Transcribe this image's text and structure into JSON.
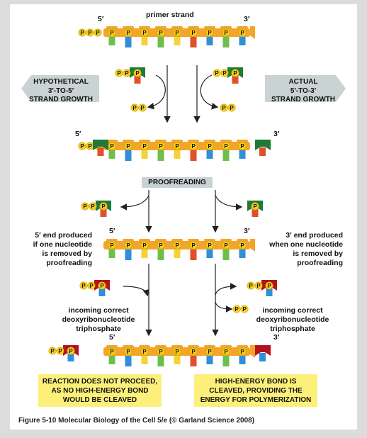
{
  "labels": {
    "primer_strand": "primer strand",
    "five_prime": "5′",
    "three_prime": "3′",
    "phosphate": "P"
  },
  "hypothetical": {
    "line1": "HYPOTHETICAL",
    "line2": "3′-TO-5′",
    "line3": "STRAND GROWTH"
  },
  "actual": {
    "line1": "ACTUAL",
    "line2": "5′-TO-3′",
    "line3": "STRAND GROWTH"
  },
  "proofreading": "PROOFREADING",
  "left_note": {
    "line1": "5′ end produced",
    "line2": "if one nucleotide",
    "line3": "is removed by",
    "line4": "proofreading"
  },
  "right_note": {
    "line1": "3′ end produced",
    "line2": "when one nucleotide",
    "line3": "is removed by",
    "line4": "proofreading"
  },
  "incoming": {
    "line1": "incoming correct",
    "line2": "deoxyribonucleotide",
    "line3": "triphosphate"
  },
  "result_left": {
    "line1": "REACTION DOES NOT PROCEED,",
    "line2": "AS NO HIGH-ENERGY BOND",
    "line3": "WOULD BE CLEAVED"
  },
  "result_right": {
    "line1": "HIGH-ENERGY BOND IS",
    "line2": "CLEAVED, PROVIDING THE",
    "line3": "ENERGY FOR POLYMERIZATION"
  },
  "caption": "Figure 5-10 Molecular Biology of the Cell 5/e (© Garland Science 2008)",
  "colors": {
    "backbone": "#f3a52a",
    "phosphate": "#f6cf1e",
    "green_cap": "#1f7a36",
    "red_cap": "#b5121b",
    "base_green": "#6cc04a",
    "base_blue": "#2f8fd8",
    "base_yellow": "#f5d23a",
    "base_red": "#e0502a",
    "yellow_note": "#fcf07a",
    "gray_band": "#c9d3d3"
  }
}
